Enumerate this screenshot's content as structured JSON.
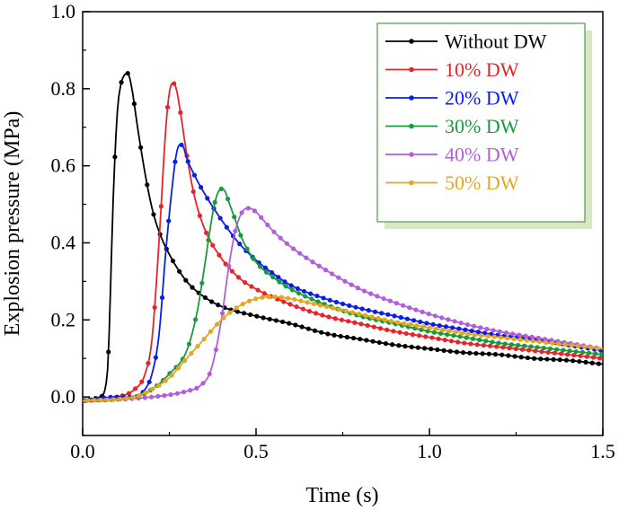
{
  "chart_data": {
    "type": "line",
    "title": "",
    "xlabel": "Time (s)",
    "ylabel": "Explosion pressure (MPa)",
    "xlim": [
      0.0,
      1.5
    ],
    "ylim": [
      -0.1,
      1.0
    ],
    "xticks": [
      0.0,
      0.5,
      1.0,
      1.5
    ],
    "xtick_labels": [
      "0.0",
      "0.5",
      "1.0",
      "1.5"
    ],
    "yticks": [
      0.0,
      0.2,
      0.4,
      0.6,
      0.8,
      1.0
    ],
    "ytick_labels": [
      "0.0",
      "0.2",
      "0.4",
      "0.6",
      "0.8",
      "1.0"
    ],
    "grid": false,
    "legend_position": "top-right",
    "series": [
      {
        "name": "Without DW",
        "color": "#000000",
        "x": [
          0.0,
          0.05,
          0.07,
          0.09,
          0.1,
          0.11,
          0.12,
          0.13,
          0.14,
          0.16,
          0.18,
          0.2,
          0.22,
          0.25,
          0.3,
          0.35,
          0.4,
          0.5,
          0.6,
          0.7,
          0.8,
          0.9,
          1.0,
          1.1,
          1.2,
          1.3,
          1.4,
          1.5
        ],
        "y": [
          -0.01,
          0.0,
          0.05,
          0.56,
          0.74,
          0.81,
          0.835,
          0.84,
          0.81,
          0.69,
          0.58,
          0.49,
          0.43,
          0.37,
          0.3,
          0.26,
          0.235,
          0.21,
          0.19,
          0.165,
          0.15,
          0.135,
          0.125,
          0.115,
          0.11,
          0.1,
          0.095,
          0.085
        ]
      },
      {
        "name": "10% DW",
        "color": "#e8232a",
        "x": [
          0.0,
          0.1,
          0.15,
          0.18,
          0.2,
          0.22,
          0.24,
          0.25,
          0.26,
          0.27,
          0.28,
          0.3,
          0.32,
          0.35,
          0.4,
          0.45,
          0.5,
          0.6,
          0.7,
          0.8,
          0.9,
          1.0,
          1.1,
          1.2,
          1.3,
          1.4,
          1.5
        ],
        "y": [
          -0.01,
          0.0,
          0.02,
          0.06,
          0.15,
          0.4,
          0.7,
          0.79,
          0.815,
          0.8,
          0.75,
          0.63,
          0.53,
          0.44,
          0.36,
          0.31,
          0.28,
          0.24,
          0.21,
          0.19,
          0.17,
          0.155,
          0.14,
          0.13,
          0.12,
          0.11,
          0.1
        ]
      },
      {
        "name": "20% DW",
        "color": "#0a1ee6",
        "x": [
          0.0,
          0.1,
          0.15,
          0.18,
          0.2,
          0.22,
          0.24,
          0.26,
          0.27,
          0.28,
          0.29,
          0.3,
          0.32,
          0.35,
          0.4,
          0.45,
          0.5,
          0.55,
          0.6,
          0.7,
          0.8,
          0.9,
          1.0,
          1.1,
          1.2,
          1.3,
          1.4,
          1.5
        ],
        "y": [
          -0.01,
          0.0,
          0.0,
          0.02,
          0.06,
          0.16,
          0.38,
          0.56,
          0.63,
          0.655,
          0.65,
          0.62,
          0.58,
          0.53,
          0.46,
          0.4,
          0.355,
          0.32,
          0.29,
          0.255,
          0.23,
          0.21,
          0.19,
          0.175,
          0.16,
          0.15,
          0.135,
          0.12
        ]
      },
      {
        "name": "30% DW",
        "color": "#1a9a3c",
        "x": [
          0.0,
          0.15,
          0.2,
          0.25,
          0.3,
          0.33,
          0.35,
          0.37,
          0.38,
          0.39,
          0.4,
          0.41,
          0.42,
          0.44,
          0.46,
          0.5,
          0.55,
          0.6,
          0.7,
          0.8,
          0.9,
          1.0,
          1.1,
          1.2,
          1.3,
          1.4,
          1.5
        ],
        "y": [
          -0.01,
          0.0,
          0.02,
          0.06,
          0.12,
          0.22,
          0.33,
          0.45,
          0.5,
          0.53,
          0.54,
          0.535,
          0.51,
          0.46,
          0.41,
          0.35,
          0.31,
          0.28,
          0.24,
          0.21,
          0.19,
          0.17,
          0.155,
          0.14,
          0.13,
          0.12,
          0.11
        ]
      },
      {
        "name": "40% DW",
        "color": "#b25ed8",
        "x": [
          0.0,
          0.2,
          0.3,
          0.34,
          0.37,
          0.4,
          0.42,
          0.44,
          0.46,
          0.48,
          0.5,
          0.52,
          0.55,
          0.6,
          0.7,
          0.8,
          0.9,
          1.0,
          1.1,
          1.2,
          1.3,
          1.4,
          1.5
        ],
        "y": [
          -0.01,
          0.0,
          0.015,
          0.03,
          0.07,
          0.2,
          0.33,
          0.43,
          0.48,
          0.49,
          0.48,
          0.46,
          0.43,
          0.39,
          0.33,
          0.28,
          0.245,
          0.215,
          0.19,
          0.17,
          0.155,
          0.14,
          0.125
        ]
      },
      {
        "name": "50% DW",
        "color": "#e3a823",
        "x": [
          0.0,
          0.15,
          0.2,
          0.25,
          0.3,
          0.35,
          0.4,
          0.45,
          0.5,
          0.55,
          0.6,
          0.65,
          0.7,
          0.8,
          0.9,
          1.0,
          1.1,
          1.2,
          1.3,
          1.4,
          1.5
        ],
        "y": [
          -0.01,
          0.0,
          0.02,
          0.05,
          0.1,
          0.15,
          0.2,
          0.235,
          0.255,
          0.26,
          0.255,
          0.245,
          0.235,
          0.215,
          0.195,
          0.18,
          0.165,
          0.155,
          0.145,
          0.135,
          0.125
        ]
      }
    ]
  }
}
